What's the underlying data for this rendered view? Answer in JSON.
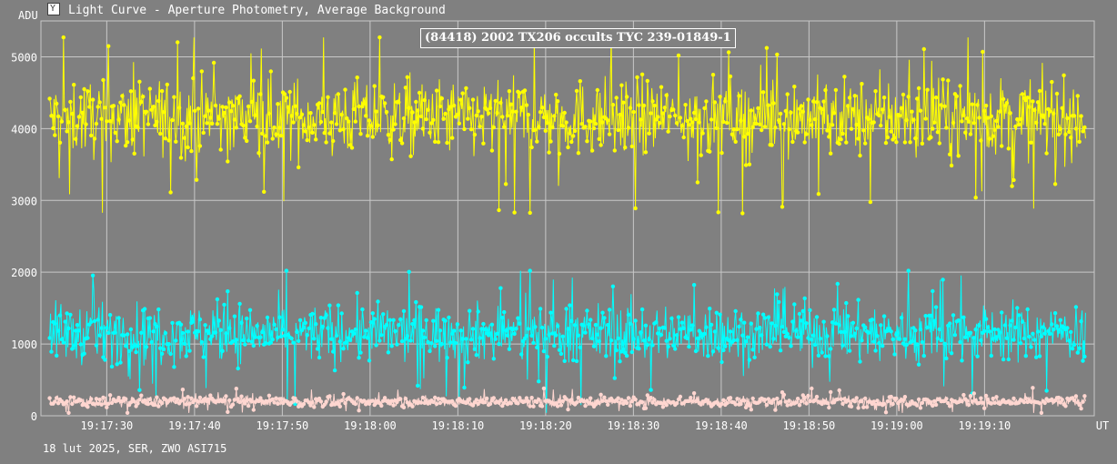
{
  "window": {
    "title": "Light Curve - Aperture Photometry, Average Background",
    "icon": "light-curve-app-icon"
  },
  "footer": {
    "text": "18 lut 2025, SER, ZWO ASI715"
  },
  "chart_data": {
    "type": "line",
    "title": "(84418) 2002 TX206 occults TYC 239-01849-1",
    "ylabel": "ADU",
    "xlabel": "UT",
    "ylim": [
      0,
      5500
    ],
    "xlim": [
      "19:17:22.5",
      "19:19:22.5"
    ],
    "grid": true,
    "yticks": [
      "0",
      "1000",
      "2000",
      "3000",
      "4000",
      "5000"
    ],
    "xticks": [
      "19:17:30",
      "19:17:40",
      "19:17:50",
      "19:18:00",
      "19:18:10",
      "19:18:20",
      "19:18:30",
      "19:18:40",
      "19:18:50",
      "19:19:00",
      "19:19:10"
    ],
    "background_color": "#808080",
    "series": [
      {
        "color": "#ffff00",
        "approx_mean": 4150,
        "approx_min": 2650,
        "approx_max": 5270,
        "marker": "dot"
      },
      {
        "color": "#00ffff",
        "approx_mean": 1150,
        "approx_min": 40,
        "approx_max": 2020,
        "marker": "dot"
      },
      {
        "color": "#ffd6d0",
        "approx_mean": 200,
        "approx_min": 40,
        "approx_max": 420,
        "marker": "dot"
      }
    ]
  }
}
